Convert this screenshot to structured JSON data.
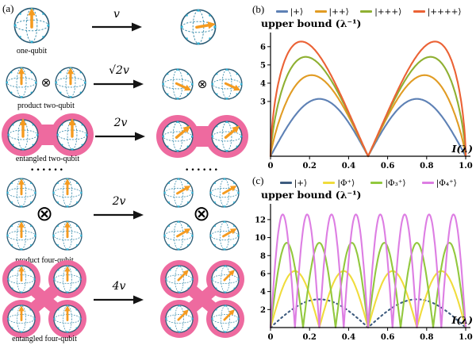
{
  "figure": {
    "panel_a_label": "(a)",
    "panel_b_label": "(b)",
    "panel_c_label": "(c)"
  },
  "colors": {
    "pink": "#ee6a9f",
    "orange": "#f59b20",
    "sphere_outline": "#2b5d77",
    "sphere_grid": "#3e8fae",
    "sphere_marker": "#2db3d6",
    "axis": "#000000"
  },
  "diagram": {
    "labels": {
      "one_qubit": "one-qubit",
      "product_two_qubit": "product two-qubit",
      "entangled_two_qubit": "entangled two-qubit",
      "product_four_qubit": "product four-qubit",
      "entangled_four_qubit": "entangled four-qubit",
      "tensor": "⊗",
      "dots": "······"
    },
    "velocities": [
      "v",
      "√2v",
      "2v",
      "2v",
      "4v"
    ]
  },
  "chart_data": [
    {
      "panel": "(b)",
      "type": "line",
      "title": "upper bound (λ⁻¹)",
      "xlabel": "I(λ)",
      "xlim": [
        0,
        1
      ],
      "ylim": [
        0,
        6.6
      ],
      "xticks": [
        0,
        0.2,
        0.4,
        0.6,
        0.8,
        1
      ],
      "xtick_labels": [
        "0",
        "0.2",
        "0.4",
        "0.6",
        "0.8",
        "1.0"
      ],
      "yticks": [
        3,
        4,
        5,
        6
      ],
      "legend_position": "top",
      "grid": false,
      "series": [
        {
          "key": "plus1",
          "name": "|+⟩",
          "color": "#5e81b5",
          "model": "humps",
          "amplitude": 3.14,
          "skew": 1.0,
          "peak_x": [
            0.25,
            0.75
          ],
          "zero_x": [
            0,
            0.5,
            1
          ]
        },
        {
          "key": "plus2",
          "name": "|++⟩",
          "color": "#e19c24",
          "model": "humps",
          "amplitude": 4.44,
          "skew": 0.8,
          "peak_x": [
            0.21,
            0.79
          ],
          "zero_x": [
            0,
            0.5,
            1
          ]
        },
        {
          "key": "plus3",
          "name": "|+++⟩",
          "color": "#8fb032",
          "model": "humps",
          "amplitude": 5.44,
          "skew": 0.68,
          "peak_x": [
            0.18,
            0.82
          ],
          "zero_x": [
            0,
            0.5,
            1
          ]
        },
        {
          "key": "plus4",
          "name": "|++++⟩",
          "color": "#eb6235",
          "model": "humps",
          "amplitude": 6.28,
          "skew": 0.6,
          "peak_x": [
            0.15,
            0.85
          ],
          "zero_x": [
            0,
            0.5,
            1
          ]
        }
      ]
    },
    {
      "panel": "(c)",
      "type": "line",
      "title": "upper bound (λ⁻¹)",
      "xlabel": "I(λ)",
      "xlim": [
        0,
        1
      ],
      "ylim": [
        0,
        13.4
      ],
      "xticks": [
        0,
        0.2,
        0.4,
        0.6,
        0.8,
        1
      ],
      "xtick_labels": [
        "0",
        "0.2",
        "0.4",
        "0.6",
        "0.8",
        "1.0"
      ],
      "yticks": [
        2,
        4,
        6,
        8,
        10,
        12
      ],
      "legend_position": "top",
      "grid": false,
      "series": [
        {
          "key": "plus",
          "name": "|+⟩",
          "color": "#3e5c7f",
          "model": "abs-sin",
          "amplitude": 3.14,
          "humps": 2,
          "dash": "2 4",
          "peak_y": 3.14
        },
        {
          "key": "phi2",
          "name": "|Φ⁺⟩",
          "color": "#f0dc3c",
          "model": "abs-sin",
          "amplitude": 6.28,
          "humps": 4,
          "peak_y": 6.28
        },
        {
          "key": "phi3",
          "name": "|Φ₃⁺⟩",
          "color": "#92c83e",
          "model": "abs-sin",
          "amplitude": 9.42,
          "humps": 6,
          "peak_y": 9.42
        },
        {
          "key": "phi4",
          "name": "|Φ₄⁺⟩",
          "color": "#dd7ee3",
          "model": "abs-sin",
          "amplitude": 12.57,
          "humps": 8,
          "peak_y": 12.57
        }
      ]
    }
  ]
}
